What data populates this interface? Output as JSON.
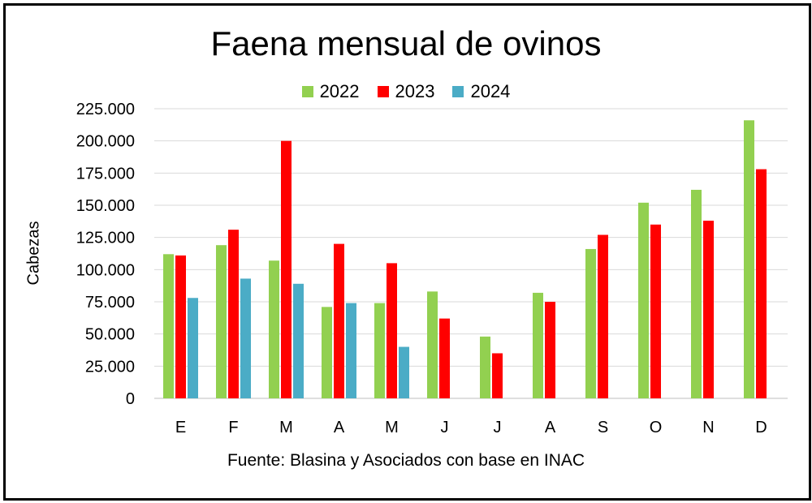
{
  "chart_data": {
    "type": "bar",
    "title": "Faena mensual de ovinos",
    "ylabel": "Cabezas",
    "xlabel": "",
    "source": "Fuente: Blasina y Asociados con base en INAC",
    "categories": [
      "E",
      "F",
      "M",
      "A",
      "M",
      "J",
      "J",
      "A",
      "S",
      "O",
      "N",
      "D"
    ],
    "yticks": [
      "0",
      "25.000",
      "50.000",
      "75.000",
      "100.000",
      "125.000",
      "150.000",
      "175.000",
      "200.000",
      "225.000"
    ],
    "ylim": [
      0,
      225000
    ],
    "grid": true,
    "legend_position": "top",
    "series": [
      {
        "name": "2022",
        "color": "#92d050",
        "values": [
          112000,
          119000,
          107000,
          71000,
          74000,
          83000,
          48000,
          82000,
          116000,
          152000,
          162000,
          216000
        ]
      },
      {
        "name": "2023",
        "color": "#ff0000",
        "values": [
          111000,
          131000,
          200000,
          120000,
          105000,
          62000,
          35000,
          75000,
          127000,
          135000,
          138000,
          178000
        ]
      },
      {
        "name": "2024",
        "color": "#4bacc6",
        "values": [
          78000,
          93000,
          89000,
          74000,
          40000,
          null,
          null,
          null,
          null,
          null,
          null,
          null
        ]
      }
    ]
  }
}
